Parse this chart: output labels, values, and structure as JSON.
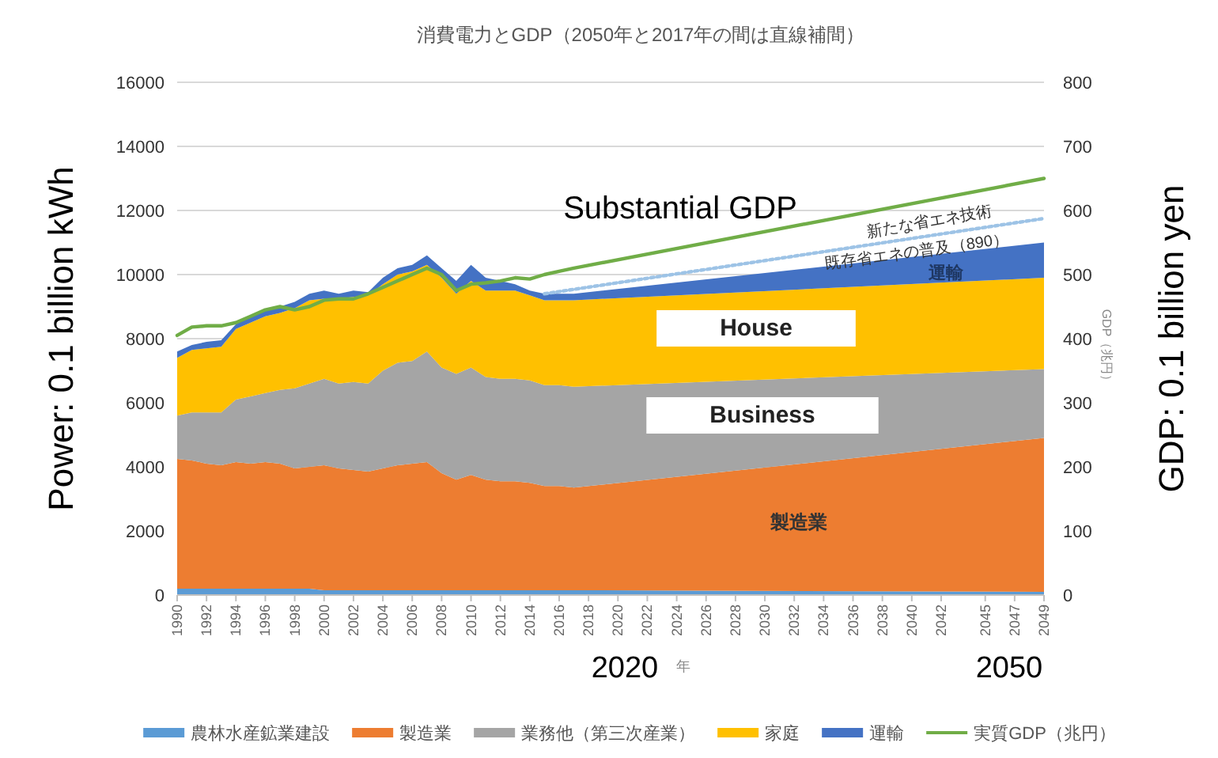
{
  "chart_data": {
    "type": "area",
    "stacked": true,
    "title": "消費電力とGDP（2050年と2017年の間は直線補間）",
    "ylabel": "Power: 0.1 billion kWh",
    "y2label": "GDP: 0.1 billion yen",
    "annotations": [
      "Substantial GDP",
      "新たな省エネ技術",
      "既存省エネの普及（890）",
      "運輸",
      "House",
      "Business",
      "製造業",
      "2020",
      "2050",
      "年",
      "GDP（兆円）"
    ],
    "x": [
      1990,
      1991,
      1992,
      1993,
      1994,
      1995,
      1996,
      1997,
      1998,
      1999,
      2000,
      2001,
      2002,
      2003,
      2004,
      2005,
      2006,
      2007,
      2008,
      2009,
      2010,
      2011,
      2012,
      2013,
      2014,
      2015,
      2016,
      2017,
      2049
    ],
    "series": [
      {
        "name": "農林水産鉱業建設",
        "color": "#5b9bd5",
        "values": [
          200,
          200,
          200,
          200,
          200,
          200,
          200,
          200,
          200,
          200,
          150,
          150,
          150,
          150,
          150,
          150,
          150,
          150,
          150,
          150,
          150,
          150,
          150,
          150,
          150,
          150,
          150,
          150,
          100
        ]
      },
      {
        "name": "製造業",
        "color": "#ed7d31",
        "values": [
          4050,
          4000,
          3900,
          3850,
          3950,
          3900,
          3950,
          3900,
          3750,
          3800,
          3900,
          3800,
          3750,
          3700,
          3800,
          3900,
          3950,
          4000,
          3650,
          3450,
          3600,
          3450,
          3400,
          3400,
          3350,
          3250,
          3250,
          3200,
          4800
        ]
      },
      {
        "name": "業務他（第三次産業）",
        "color": "#a5a5a5",
        "values": [
          1350,
          1500,
          1600,
          1650,
          1950,
          2100,
          2150,
          2300,
          2500,
          2600,
          2700,
          2650,
          2750,
          2750,
          3050,
          3200,
          3200,
          3450,
          3300,
          3300,
          3350,
          3200,
          3200,
          3200,
          3200,
          3150,
          3150,
          3150,
          2150
        ]
      },
      {
        "name": "家庭",
        "color": "#ffc000",
        "values": [
          1800,
          1950,
          2000,
          2050,
          2200,
          2300,
          2400,
          2400,
          2500,
          2600,
          2500,
          2650,
          2650,
          2750,
          2700,
          2750,
          2800,
          2700,
          2800,
          2500,
          2700,
          2700,
          2750,
          2750,
          2650,
          2650,
          2650,
          2700,
          2850
        ]
      },
      {
        "name": "運輸",
        "color": "#4472c4",
        "values": [
          200,
          150,
          200,
          200,
          150,
          200,
          200,
          200,
          200,
          200,
          250,
          150,
          200,
          100,
          200,
          200,
          200,
          300,
          300,
          400,
          500,
          400,
          300,
          200,
          150,
          200,
          200,
          200,
          1100
        ]
      },
      {
        "name": "実質GDP（兆円）",
        "type": "line",
        "axis": "y2",
        "color": "#70ad47",
        "values": [
          405,
          418,
          420,
          420,
          425,
          435,
          445,
          450,
          445,
          450,
          460,
          462,
          462,
          470,
          480,
          490,
          500,
          510,
          500,
          475,
          485,
          487,
          490,
          495,
          493,
          500,
          505,
          510,
          650
        ]
      },
      {
        "type": "line",
        "line_style": "dotted",
        "color": "#9dc3e6",
        "x": [
          2015,
          2049
        ],
        "values": [
          9400,
          11750
        ]
      }
    ],
    "xlim": [
      1990,
      2049
    ],
    "xticks": [
      1990,
      1992,
      1994,
      1996,
      1998,
      2000,
      2002,
      2004,
      2006,
      2008,
      2010,
      2012,
      2014,
      2016,
      2018,
      2020,
      2022,
      2024,
      2026,
      2028,
      2030,
      2032,
      2034,
      2036,
      2038,
      2040,
      2042,
      2045,
      2047,
      2049
    ],
    "ylim": [
      0,
      16000
    ],
    "yticks": [
      0,
      2000,
      4000,
      6000,
      8000,
      10000,
      12000,
      14000,
      16000
    ],
    "y2lim": [
      0,
      800
    ],
    "y2ticks": [
      0,
      100,
      200,
      300,
      400,
      500,
      600,
      700,
      800
    ],
    "grid": "y",
    "legend": "bottom"
  }
}
